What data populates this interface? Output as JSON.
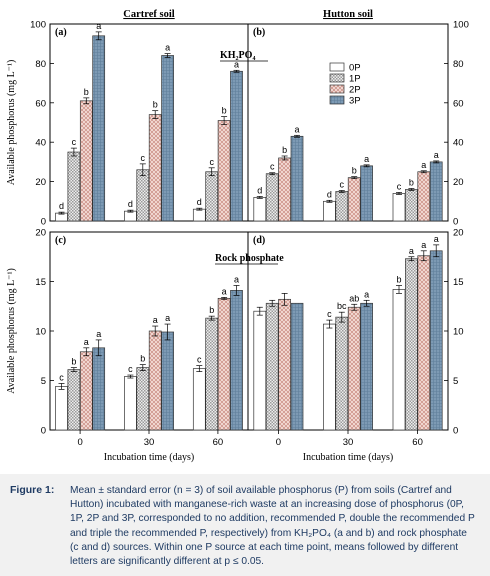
{
  "chart_data": {
    "type": "bar",
    "ylabel": "Available phosphorus (mg L⁻¹)",
    "xlabel": "Incubation time (days)",
    "categories": [
      "0",
      "30",
      "60"
    ],
    "legend": {
      "entries": [
        "0P",
        "1P",
        "2P",
        "3P"
      ],
      "placement": "top-right of panel (b)"
    },
    "colors": {
      "0P": "#ffffff",
      "1P": "#c8c8c8",
      "2P": "#eec9c0",
      "3P": "#7d9ab4"
    },
    "panels": [
      {
        "id": "a",
        "label": "(a)",
        "title": "Cartref soil",
        "annotation": "KH₂PO₄",
        "ylim": [
          0,
          100
        ],
        "yticks": [
          "0",
          "20",
          "40",
          "60",
          "80",
          "100"
        ],
        "series": [
          {
            "name": "0P",
            "values": [
              4,
              5,
              6
            ],
            "errors": [
              0.5,
              0.5,
              0.5
            ],
            "letters": [
              "d",
              "d",
              "d"
            ]
          },
          {
            "name": "1P",
            "values": [
              35,
              26,
              25
            ],
            "errors": [
              2,
              3,
              2
            ],
            "letters": [
              "c",
              "c",
              "c"
            ]
          },
          {
            "name": "2P",
            "values": [
              61,
              54,
              51
            ],
            "errors": [
              1.5,
              2,
              2
            ],
            "letters": [
              "b",
              "b",
              "b"
            ]
          },
          {
            "name": "3P",
            "values": [
              94,
              84,
              76
            ],
            "errors": [
              2,
              1,
              0.5
            ],
            "letters": [
              "a",
              "a",
              "a"
            ]
          }
        ]
      },
      {
        "id": "b",
        "label": "(b)",
        "title": "Hutton soil",
        "ylim": [
          0,
          100
        ],
        "yticks": [
          "0",
          "20",
          "40",
          "60",
          "80",
          "100"
        ],
        "series": [
          {
            "name": "0P",
            "values": [
              12,
              10,
              14
            ],
            "errors": [
              0.5,
              0.5,
              0.5
            ],
            "letters": [
              "d",
              "d",
              "c"
            ]
          },
          {
            "name": "1P",
            "values": [
              24,
              15,
              16
            ],
            "errors": [
              0.5,
              0.5,
              0.5
            ],
            "letters": [
              "c",
              "c",
              "b"
            ]
          },
          {
            "name": "2P",
            "values": [
              32,
              22,
              25
            ],
            "errors": [
              1,
              0.5,
              0.5
            ],
            "letters": [
              "b",
              "b",
              "a"
            ]
          },
          {
            "name": "3P",
            "values": [
              43,
              28,
              30
            ],
            "errors": [
              0.5,
              0.5,
              0.5
            ],
            "letters": [
              "a",
              "a",
              "a"
            ]
          }
        ]
      },
      {
        "id": "c",
        "label": "(c)",
        "title": "",
        "annotation": "Rock phosphate",
        "ylim": [
          0,
          20
        ],
        "yticks": [
          "0",
          "5",
          "10",
          "15",
          "20"
        ],
        "series": [
          {
            "name": "0P",
            "values": [
              4.4,
              5.4,
              6.2
            ],
            "errors": [
              0.3,
              0.15,
              0.3
            ],
            "letters": [
              "c",
              "c",
              "c"
            ]
          },
          {
            "name": "1P",
            "values": [
              6.1,
              6.3,
              11.3
            ],
            "errors": [
              0.2,
              0.3,
              0.2
            ],
            "letters": [
              "b",
              "b",
              "b"
            ]
          },
          {
            "name": "2P",
            "values": [
              7.9,
              10,
              13.3
            ],
            "errors": [
              0.4,
              0.5,
              0.1
            ],
            "letters": [
              "a",
              "a",
              "a"
            ]
          },
          {
            "name": "3P",
            "values": [
              8.3,
              9.9,
              14.1
            ],
            "errors": [
              0.8,
              0.8,
              0.5
            ],
            "letters": [
              "a",
              "a",
              "a"
            ]
          }
        ]
      },
      {
        "id": "d",
        "label": "(d)",
        "title": "",
        "ylim": [
          0,
          20
        ],
        "yticks": [
          "0",
          "5",
          "10",
          "15",
          "20"
        ],
        "series": [
          {
            "name": "0P",
            "values": [
              12,
              10.7,
              14.2
            ],
            "errors": [
              0.4,
              0.4,
              0.4
            ],
            "letters": [
              "",
              "c",
              "b"
            ]
          },
          {
            "name": "1P",
            "values": [
              12.8,
              11.4,
              17.3
            ],
            "errors": [
              0.3,
              0.5,
              0.2
            ],
            "letters": [
              "",
              "bc",
              "a"
            ]
          },
          {
            "name": "2P",
            "values": [
              13.2,
              12.4,
              17.6
            ],
            "errors": [
              0.6,
              0.3,
              0.5
            ],
            "letters": [
              "",
              "ab",
              "a"
            ]
          },
          {
            "name": "3P",
            "values": [
              12.8,
              12.8,
              18.1
            ],
            "errors": [
              0,
              0.3,
              0.6
            ],
            "letters": [
              "",
              "a",
              "a"
            ]
          }
        ]
      }
    ]
  },
  "caption": {
    "label": "Figure 1:",
    "text": "Mean ± standard error (n = 3) of soil available phosphorus (P) from soils (Cartref and Hutton) incubated with manganese-rich waste at an increasing dose of phosphorus (0P, 1P, 2P and 3P, corresponded to no addition, recommended P, double the recommended P and triple the recommended P, respectively) from KH₂PO₄ (a and b) and rock phosphate (c and d) sources. Within one P source at each time point, means followed by different letters are significantly different at p ≤ 0.05."
  }
}
